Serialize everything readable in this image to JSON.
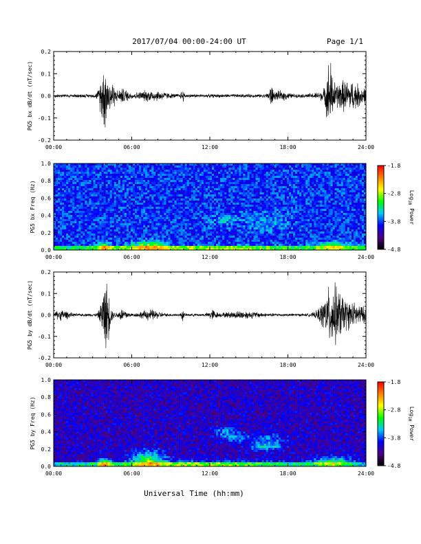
{
  "header": {
    "title": "2017/07/04  00:00-24:00 UT",
    "page": "Page 1/1"
  },
  "xaxis_label": "Universal Time (hh:mm)",
  "colorbar": {
    "label_base": "Log",
    "label_sub": "10",
    "label_tail": " Power",
    "ticks": [
      "-1.8",
      "-2.8",
      "-3.8",
      "-4.8"
    ],
    "range": [
      -4.8,
      -1.8
    ],
    "colors": [
      "#000000",
      "#4b0082",
      "#0000ff",
      "#00c8ff",
      "#00ff00",
      "#ffff00",
      "#ff8000",
      "#ff0000"
    ]
  },
  "chart_data": [
    {
      "type": "line",
      "ylabel": "PG5 bx dB/dt (nT/sec)",
      "xlim": [
        0,
        24
      ],
      "ylim": [
        -0.2,
        0.2
      ],
      "x_ticks": [
        "00:00",
        "06:00",
        "12:00",
        "18:00",
        "24:00"
      ],
      "y_ticks": [
        "0.2",
        "0.1",
        "0.0",
        "-0.1",
        "-0.2"
      ],
      "noise_base": 0.006,
      "bursts": [
        {
          "t": 3.9,
          "w": 0.35,
          "amp": 0.11
        },
        {
          "t": 4.5,
          "w": 0.25,
          "amp": 0.04
        },
        {
          "t": 5.3,
          "w": 0.5,
          "amp": 0.02
        },
        {
          "t": 7.5,
          "w": 1.2,
          "amp": 0.015
        },
        {
          "t": 9.9,
          "w": 0.1,
          "amp": 0.025
        },
        {
          "t": 16.7,
          "w": 0.2,
          "amp": 0.03
        },
        {
          "t": 17.5,
          "w": 0.6,
          "amp": 0.012
        },
        {
          "t": 21.2,
          "w": 0.25,
          "amp": 0.1
        },
        {
          "t": 22.5,
          "w": 1.6,
          "amp": 0.05
        }
      ]
    },
    {
      "type": "heatmap",
      "ylabel": "PG5 bx Freq (Hz)",
      "xlim": [
        0,
        24
      ],
      "ylim": [
        0,
        1.0
      ],
      "x_ticks": [
        "00:00",
        "06:00",
        "12:00",
        "18:00",
        "24:00"
      ],
      "y_ticks": [
        "1.0",
        "0.8",
        "0.6",
        "0.4",
        "0.2",
        "0.0"
      ],
      "zlim": [
        -4.8,
        -1.8
      ],
      "base_level": -3.85,
      "features": [
        {
          "t": 3.9,
          "f": 0.03,
          "wt": 0.5,
          "wf": 0.05,
          "amp": 0.9
        },
        {
          "t": 7.3,
          "f": 0.05,
          "wt": 1.3,
          "wf": 0.06,
          "amp": 0.8
        },
        {
          "t": 11,
          "f": 0.02,
          "wt": 8,
          "wf": 0.03,
          "amp": 0.6
        },
        {
          "t": 13.2,
          "f": 0.35,
          "wt": 1.0,
          "wf": 0.06,
          "amp": 0.35
        },
        {
          "t": 16.5,
          "f": 0.32,
          "wt": 1.5,
          "wf": 0.1,
          "amp": 0.25
        },
        {
          "t": 21.5,
          "f": 0.04,
          "wt": 1.5,
          "wf": 0.05,
          "amp": 0.7
        }
      ]
    },
    {
      "type": "line",
      "ylabel": "PG5 by dB/dt (nT/sec)",
      "xlim": [
        0,
        24
      ],
      "ylim": [
        -0.2,
        0.2
      ],
      "x_ticks": [
        "00:00",
        "06:00",
        "12:00",
        "18:00",
        "24:00"
      ],
      "y_ticks": [
        "0.2",
        "0.1",
        "0.0",
        "-0.1",
        "-0.2"
      ],
      "noise_base": 0.005,
      "bursts": [
        {
          "t": 0.6,
          "w": 0.6,
          "amp": 0.015
        },
        {
          "t": 4.0,
          "w": 0.35,
          "amp": 0.12
        },
        {
          "t": 5.3,
          "w": 0.4,
          "amp": 0.02
        },
        {
          "t": 7.4,
          "w": 0.8,
          "amp": 0.015
        },
        {
          "t": 9.9,
          "w": 0.1,
          "amp": 0.02
        },
        {
          "t": 12.2,
          "w": 0.3,
          "amp": 0.015
        },
        {
          "t": 14.5,
          "w": 1.5,
          "amp": 0.01
        },
        {
          "t": 21.4,
          "w": 0.8,
          "amp": 0.09
        },
        {
          "t": 22.8,
          "w": 1.5,
          "amp": 0.04
        }
      ]
    },
    {
      "type": "heatmap",
      "ylabel": "PG5 by Freq (Hz)",
      "xlim": [
        0,
        24
      ],
      "ylim": [
        0,
        1.0
      ],
      "x_ticks": [
        "00:00",
        "06:00",
        "12:00",
        "18:00",
        "24:00"
      ],
      "y_ticks": [
        "1.0",
        "0.8",
        "0.6",
        "0.4",
        "0.2",
        "0.0"
      ],
      "zlim": [
        -4.8,
        -1.8
      ],
      "base_level": -4.15,
      "features": [
        {
          "t": 3.9,
          "f": 0.03,
          "wt": 0.5,
          "wf": 0.06,
          "amp": 1.0
        },
        {
          "t": 7.3,
          "f": 0.08,
          "wt": 1.2,
          "wf": 0.1,
          "amp": 1.0
        },
        {
          "t": 11,
          "f": 0.02,
          "wt": 9,
          "wf": 0.04,
          "amp": 0.8
        },
        {
          "t": 13.2,
          "f": 0.4,
          "wt": 0.8,
          "wf": 0.05,
          "amp": 0.6
        },
        {
          "t": 14.2,
          "f": 0.33,
          "wt": 1.0,
          "wf": 0.05,
          "amp": 0.5
        },
        {
          "t": 16.5,
          "f": 0.3,
          "wt": 1.2,
          "wf": 0.08,
          "amp": 0.5
        },
        {
          "t": 16.3,
          "f": 0.22,
          "wt": 1.2,
          "wf": 0.04,
          "amp": 0.5
        },
        {
          "t": 21.5,
          "f": 0.05,
          "wt": 1.5,
          "wf": 0.06,
          "amp": 0.9
        }
      ]
    }
  ]
}
